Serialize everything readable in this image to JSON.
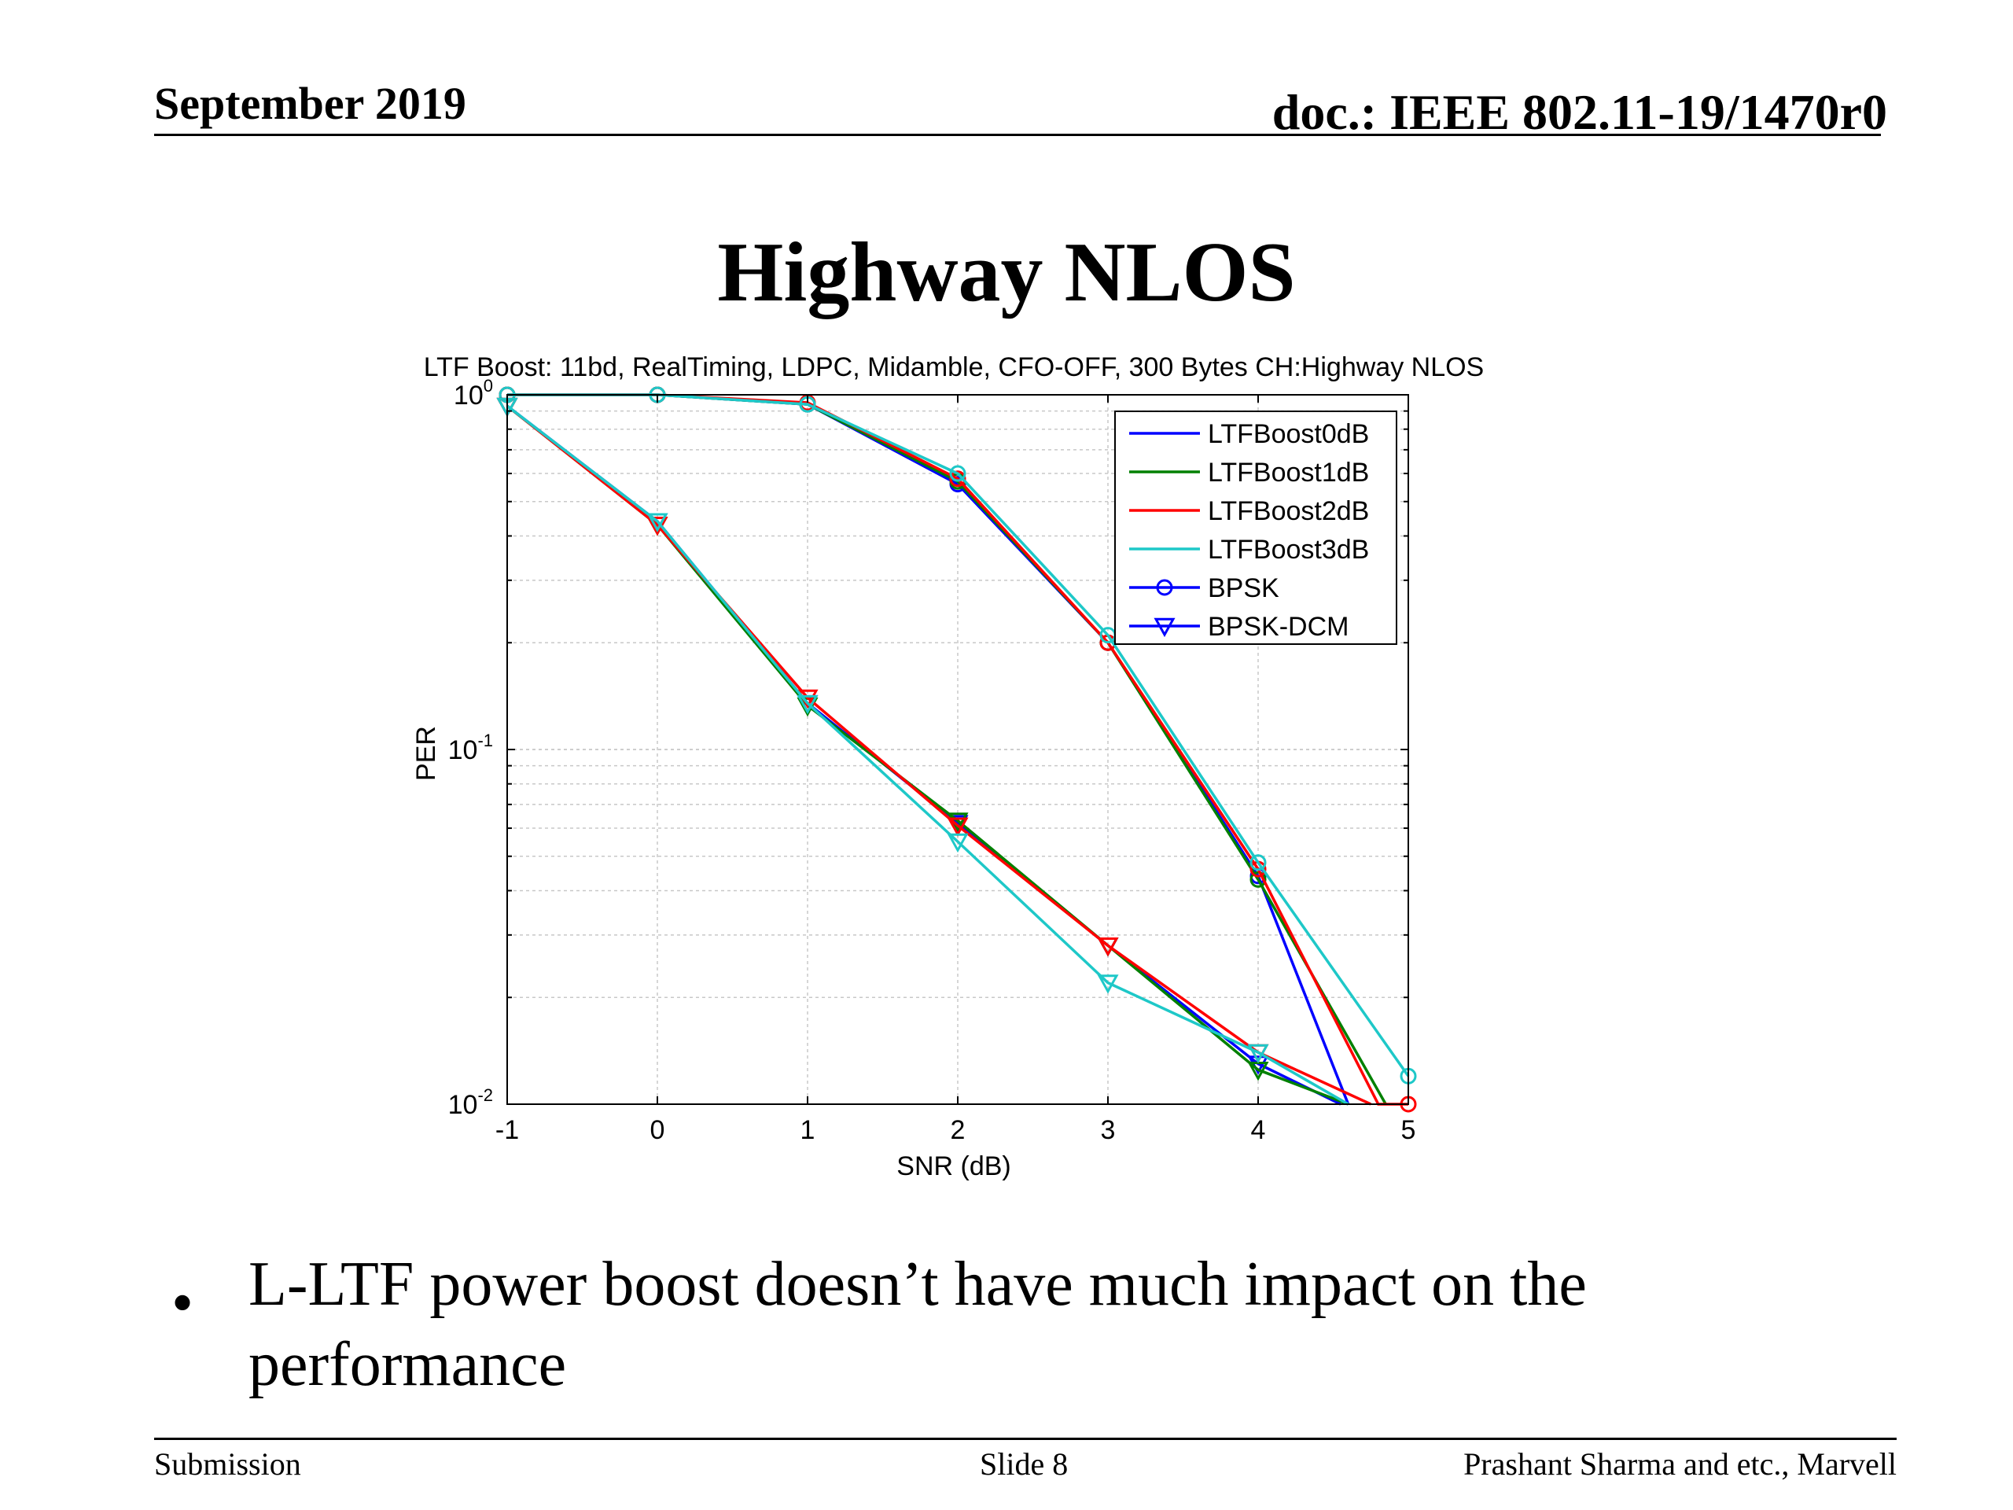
{
  "header": {
    "date": "September 2019",
    "doc": "doc.: IEEE 802.11-19/1470r0"
  },
  "slide": {
    "title": "Highway NLOS",
    "bullet": "L-LTF power boost doesn’t have much impact on the performance"
  },
  "footer": {
    "left": "Submission",
    "center": "Slide 8",
    "right": "Prashant Sharma and etc., Marvell"
  },
  "colors": {
    "LTFBoost0dB": "#0000ff",
    "LTFBoost1dB": "#008000",
    "LTFBoost2dB": "#ff0000",
    "LTFBoost3dB": "#1ec8c8",
    "axis": "#000000",
    "grid": "#c8c8c8"
  },
  "chart_data": {
    "type": "line",
    "title": "LTF Boost: 11bd, RealTiming, LDPC, Midamble, CFO-OFF, 300 Bytes CH:Highway NLOS",
    "xlabel": "SNR (dB)",
    "ylabel": "PER",
    "xlim": [
      -1,
      5
    ],
    "ylim": [
      0.01,
      1
    ],
    "yscale": "log",
    "grid": true,
    "x_ticks": [
      "-1",
      "0",
      "1",
      "2",
      "3",
      "4",
      "5"
    ],
    "y_ticks": [
      {
        "value": 1,
        "base": "10",
        "exp": "0"
      },
      {
        "value": 0.1,
        "base": "10",
        "exp": "-1"
      },
      {
        "value": 0.01,
        "base": "10",
        "exp": "-2"
      }
    ],
    "legend": {
      "position": "top-right",
      "entries": [
        {
          "label": "LTFBoost0dB",
          "color": "#0000ff",
          "marker": "none"
        },
        {
          "label": "LTFBoost1dB",
          "color": "#008000",
          "marker": "none"
        },
        {
          "label": "LTFBoost2dB",
          "color": "#ff0000",
          "marker": "none"
        },
        {
          "label": "LTFBoost3dB",
          "color": "#1ec8c8",
          "marker": "none"
        },
        {
          "label": "BPSK",
          "color": "#0000ff",
          "marker": "circle"
        },
        {
          "label": "BPSK-DCM",
          "color": "#0000ff",
          "marker": "triangle-down"
        }
      ]
    },
    "series": [
      {
        "boost": "LTFBoost0dB",
        "mod": "BPSK",
        "color": "#0000ff",
        "marker": "circle",
        "x": [
          -1,
          0,
          1,
          2,
          3,
          4,
          4.6
        ],
        "y": [
          1,
          1,
          0.94,
          0.56,
          0.2,
          0.044,
          0.01
        ]
      },
      {
        "boost": "LTFBoost1dB",
        "mod": "BPSK",
        "color": "#008000",
        "marker": "circle",
        "x": [
          -1,
          0,
          1,
          2,
          3,
          4,
          4.85
        ],
        "y": [
          1,
          1,
          0.94,
          0.57,
          0.2,
          0.043,
          0.01
        ]
      },
      {
        "boost": "LTFBoost2dB",
        "mod": "BPSK",
        "color": "#ff0000",
        "marker": "circle",
        "x": [
          -1,
          0,
          1,
          2,
          3,
          4,
          4.8,
          5
        ],
        "y": [
          1,
          1,
          0.95,
          0.58,
          0.2,
          0.046,
          0.01,
          0.01
        ]
      },
      {
        "boost": "LTFBoost3dB",
        "mod": "BPSK",
        "color": "#1ec8c8",
        "marker": "circle",
        "x": [
          -1,
          0,
          1,
          2,
          3,
          4,
          5
        ],
        "y": [
          1,
          1,
          0.94,
          0.6,
          0.21,
          0.048,
          0.012
        ]
      },
      {
        "boost": "LTFBoost0dB",
        "mod": "BPSK-DCM",
        "color": "#0000ff",
        "marker": "triangle-down",
        "x": [
          -1,
          0,
          1,
          2,
          3,
          4,
          4.55
        ],
        "y": [
          0.93,
          0.44,
          0.135,
          0.062,
          0.028,
          0.013,
          0.01
        ]
      },
      {
        "boost": "LTFBoost1dB",
        "mod": "BPSK-DCM",
        "color": "#008000",
        "marker": "triangle-down",
        "x": [
          -1,
          0,
          1,
          2,
          3,
          4,
          4.6
        ],
        "y": [
          0.93,
          0.43,
          0.133,
          0.063,
          0.028,
          0.0125,
          0.01
        ]
      },
      {
        "boost": "LTFBoost2dB",
        "mod": "BPSK-DCM",
        "color": "#ff0000",
        "marker": "triangle-down",
        "x": [
          -1,
          0,
          1,
          2,
          3,
          4,
          4.75
        ],
        "y": [
          0.93,
          0.43,
          0.14,
          0.061,
          0.028,
          0.014,
          0.01
        ]
      },
      {
        "boost": "LTFBoost3dB",
        "mod": "BPSK-DCM",
        "color": "#1ec8c8",
        "marker": "triangle-down",
        "x": [
          -1,
          0,
          1,
          2,
          3,
          4,
          4.6
        ],
        "y": [
          0.93,
          0.44,
          0.135,
          0.055,
          0.022,
          0.014,
          0.01
        ]
      }
    ]
  }
}
